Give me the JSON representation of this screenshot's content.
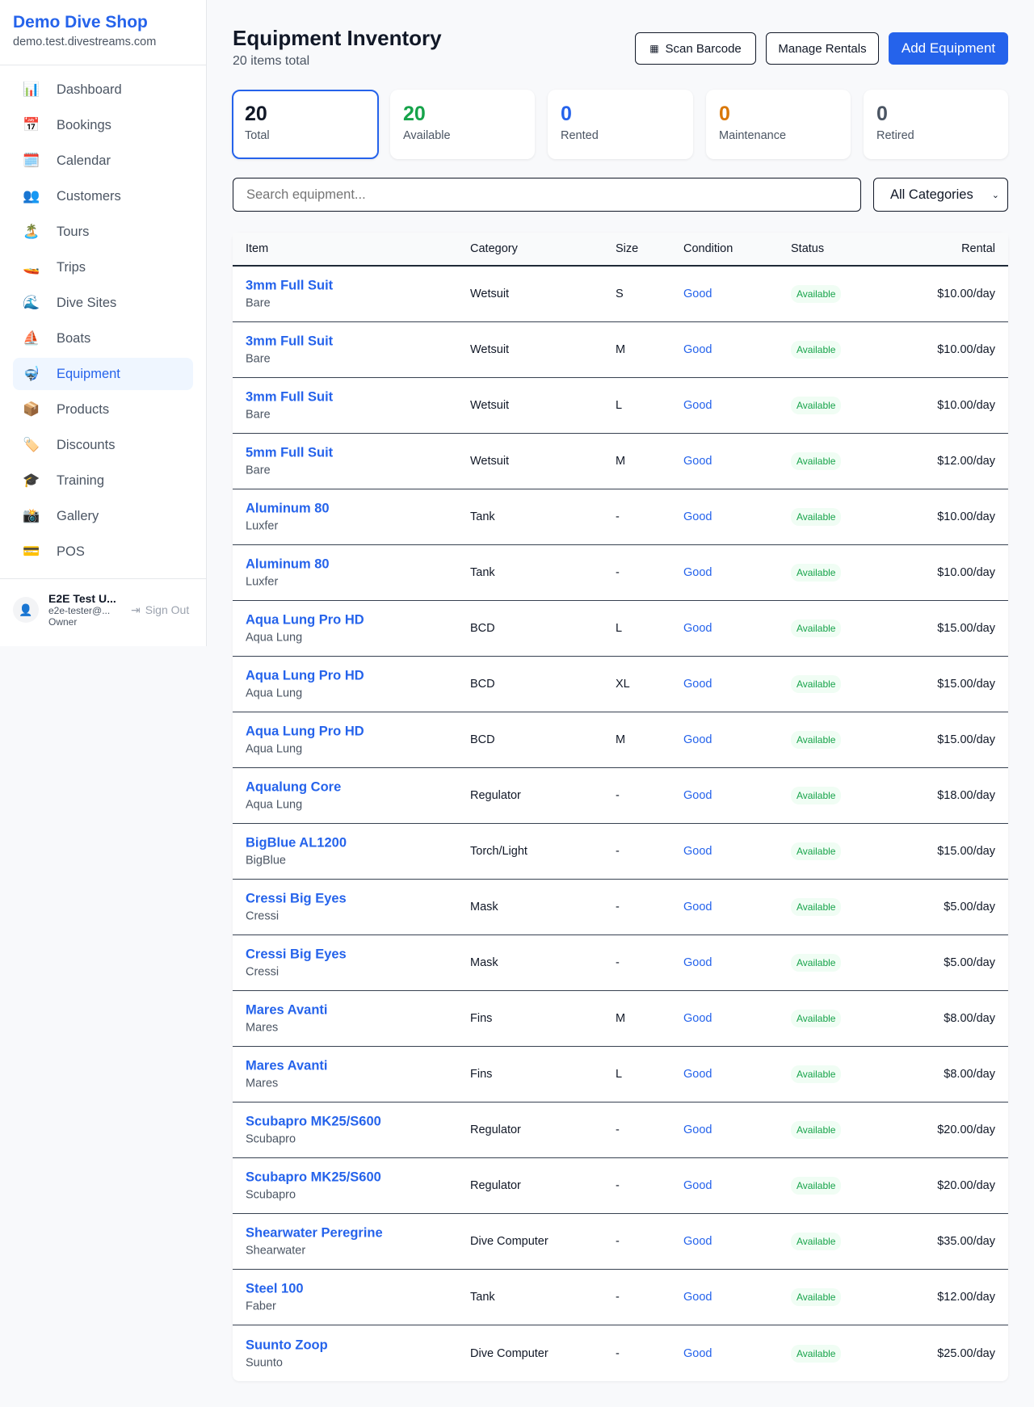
{
  "sidebar": {
    "brand": "Demo Dive Shop",
    "domain": "demo.test.divestreams.com",
    "items": [
      {
        "icon": "📊",
        "label": "Dashboard"
      },
      {
        "icon": "📅",
        "label": "Bookings"
      },
      {
        "icon": "🗓️",
        "label": "Calendar"
      },
      {
        "icon": "👥",
        "label": "Customers"
      },
      {
        "icon": "🏝️",
        "label": "Tours"
      },
      {
        "icon": "🚤",
        "label": "Trips"
      },
      {
        "icon": "🌊",
        "label": "Dive Sites"
      },
      {
        "icon": "⛵",
        "label": "Boats"
      },
      {
        "icon": "🤿",
        "label": "Equipment",
        "active": true
      },
      {
        "icon": "📦",
        "label": "Products"
      },
      {
        "icon": "🏷️",
        "label": "Discounts"
      },
      {
        "icon": "🎓",
        "label": "Training"
      },
      {
        "icon": "📸",
        "label": "Gallery"
      },
      {
        "icon": "💳",
        "label": "POS"
      }
    ],
    "user": {
      "name": "E2E Test U...",
      "email": "e2e-tester@...",
      "role": "Owner",
      "sign_out": "Sign Out"
    }
  },
  "header": {
    "title": "Equipment Inventory",
    "subtitle": "20 items total",
    "scan": "Scan Barcode",
    "manage": "Manage Rentals",
    "add": "Add Equipment"
  },
  "stats": [
    {
      "value": "20",
      "label": "Total",
      "color": "#111827"
    },
    {
      "value": "20",
      "label": "Available",
      "color": "#16a34a"
    },
    {
      "value": "0",
      "label": "Rented",
      "color": "#2563eb"
    },
    {
      "value": "0",
      "label": "Maintenance",
      "color": "#d97706"
    },
    {
      "value": "0",
      "label": "Retired",
      "color": "#4b5563"
    }
  ],
  "filters": {
    "search_placeholder": "Search equipment...",
    "category": "All Categories"
  },
  "table": {
    "headers": {
      "item": "Item",
      "category": "Category",
      "size": "Size",
      "condition": "Condition",
      "status": "Status",
      "rental": "Rental"
    },
    "rows": [
      [
        "3mm Full Suit",
        "Bare",
        "Wetsuit",
        "S",
        "Good",
        "Available",
        "$10.00/day"
      ],
      [
        "3mm Full Suit",
        "Bare",
        "Wetsuit",
        "M",
        "Good",
        "Available",
        "$10.00/day"
      ],
      [
        "3mm Full Suit",
        "Bare",
        "Wetsuit",
        "L",
        "Good",
        "Available",
        "$10.00/day"
      ],
      [
        "5mm Full Suit",
        "Bare",
        "Wetsuit",
        "M",
        "Good",
        "Available",
        "$12.00/day"
      ],
      [
        "Aluminum 80",
        "Luxfer",
        "Tank",
        "-",
        "Good",
        "Available",
        "$10.00/day"
      ],
      [
        "Aluminum 80",
        "Luxfer",
        "Tank",
        "-",
        "Good",
        "Available",
        "$10.00/day"
      ],
      [
        "Aqua Lung Pro HD",
        "Aqua Lung",
        "BCD",
        "L",
        "Good",
        "Available",
        "$15.00/day"
      ],
      [
        "Aqua Lung Pro HD",
        "Aqua Lung",
        "BCD",
        "XL",
        "Good",
        "Available",
        "$15.00/day"
      ],
      [
        "Aqua Lung Pro HD",
        "Aqua Lung",
        "BCD",
        "M",
        "Good",
        "Available",
        "$15.00/day"
      ],
      [
        "Aqualung Core",
        "Aqua Lung",
        "Regulator",
        "-",
        "Good",
        "Available",
        "$18.00/day"
      ],
      [
        "BigBlue AL1200",
        "BigBlue",
        "Torch/Light",
        "-",
        "Good",
        "Available",
        "$15.00/day"
      ],
      [
        "Cressi Big Eyes",
        "Cressi",
        "Mask",
        "-",
        "Good",
        "Available",
        "$5.00/day"
      ],
      [
        "Cressi Big Eyes",
        "Cressi",
        "Mask",
        "-",
        "Good",
        "Available",
        "$5.00/day"
      ],
      [
        "Mares Avanti",
        "Mares",
        "Fins",
        "M",
        "Good",
        "Available",
        "$8.00/day"
      ],
      [
        "Mares Avanti",
        "Mares",
        "Fins",
        "L",
        "Good",
        "Available",
        "$8.00/day"
      ],
      [
        "Scubapro MK25/S600",
        "Scubapro",
        "Regulator",
        "-",
        "Good",
        "Available",
        "$20.00/day"
      ],
      [
        "Scubapro MK25/S600",
        "Scubapro",
        "Regulator",
        "-",
        "Good",
        "Available",
        "$20.00/day"
      ],
      [
        "Shearwater Peregrine",
        "Shearwater",
        "Dive Computer",
        "-",
        "Good",
        "Available",
        "$35.00/day"
      ],
      [
        "Steel 100",
        "Faber",
        "Tank",
        "-",
        "Good",
        "Available",
        "$12.00/day"
      ],
      [
        "Suunto Zoop",
        "Suunto",
        "Dive Computer",
        "-",
        "Good",
        "Available",
        "$25.00/day"
      ]
    ]
  }
}
